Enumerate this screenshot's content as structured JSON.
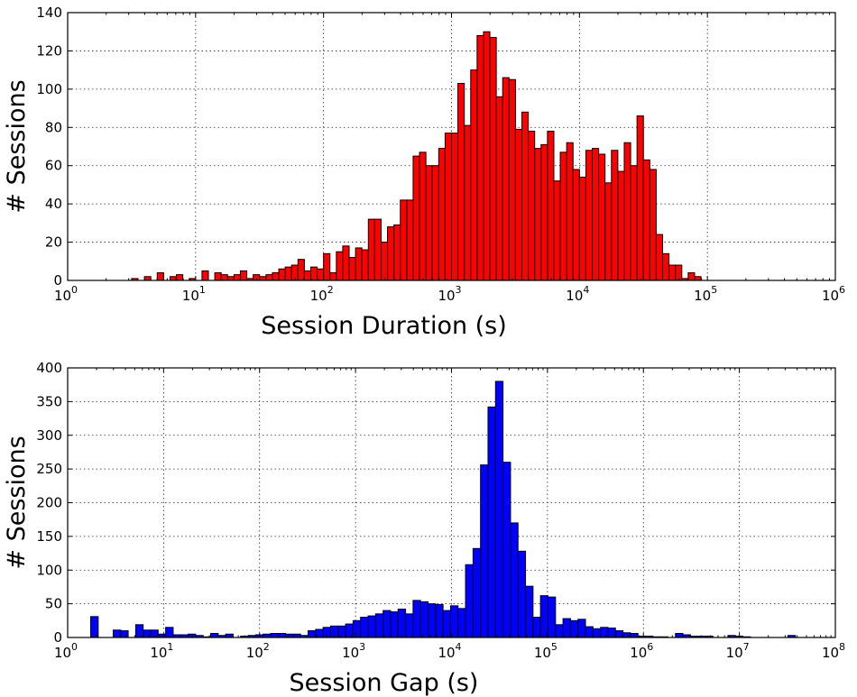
{
  "chart_data": [
    {
      "type": "bar",
      "xscale": "log",
      "xlim": [
        1,
        1000000
      ],
      "ylim": [
        0,
        140
      ],
      "xlabel": "Session Duration (s)",
      "ylabel": "# Sessions",
      "grid": true,
      "color": "#ff0000",
      "xticks": [
        {
          "base": "10",
          "exp": "0",
          "value": 1
        },
        {
          "base": "10",
          "exp": "1",
          "value": 10
        },
        {
          "base": "10",
          "exp": "2",
          "value": 100
        },
        {
          "base": "10",
          "exp": "3",
          "value": 1000
        },
        {
          "base": "10",
          "exp": "4",
          "value": 10000
        },
        {
          "base": "10",
          "exp": "5",
          "value": 100000
        },
        {
          "base": "10",
          "exp": "6",
          "value": 1000000
        }
      ],
      "yticks": [
        "0",
        "20",
        "40",
        "60",
        "80",
        "100",
        "120",
        "140"
      ],
      "bins_per_decade": 20,
      "bin_start_log10": 0.5,
      "values": [
        1,
        0,
        2,
        0,
        4,
        0,
        2,
        3,
        0,
        1,
        0,
        5,
        0,
        4,
        3,
        2,
        3,
        5,
        1,
        3,
        2,
        3,
        4,
        6,
        7,
        8,
        11,
        5,
        7,
        6,
        14,
        4,
        15,
        18,
        12,
        17,
        16,
        32,
        32,
        20,
        28,
        29,
        42,
        42,
        65,
        67,
        60,
        60,
        69,
        77,
        77,
        103,
        81,
        110,
        128,
        130,
        127,
        96,
        106,
        105,
        79,
        88,
        78,
        69,
        71,
        78,
        52,
        67,
        72,
        58,
        54,
        68,
        69,
        66,
        51,
        68,
        57,
        72,
        60,
        86,
        63,
        58,
        24,
        14,
        8,
        8,
        1,
        4,
        2
      ]
    },
    {
      "type": "bar",
      "xscale": "log",
      "xlim": [
        1,
        100000000
      ],
      "ylim": [
        0,
        400
      ],
      "xlabel": "Session Gap (s)",
      "ylabel": "# Sessions",
      "grid": true,
      "color": "#0000ff",
      "xticks": [
        {
          "base": "10",
          "exp": "0",
          "value": 1
        },
        {
          "base": "10",
          "exp": "1",
          "value": 10
        },
        {
          "base": "10",
          "exp": "2",
          "value": 100
        },
        {
          "base": "10",
          "exp": "3",
          "value": 1000
        },
        {
          "base": "10",
          "exp": "4",
          "value": 10000
        },
        {
          "base": "10",
          "exp": "5",
          "value": 100000
        },
        {
          "base": "10",
          "exp": "6",
          "value": 1000000
        },
        {
          "base": "10",
          "exp": "7",
          "value": 10000000
        },
        {
          "base": "10",
          "exp": "8",
          "value": 100000000
        }
      ],
      "yticks": [
        "0",
        "50",
        "100",
        "150",
        "200",
        "250",
        "300",
        "350",
        "400"
      ],
      "bins_per_decade": 12.8,
      "bin_start_log10": 0.24,
      "values": [
        31,
        0,
        0,
        11,
        10,
        0,
        19,
        11,
        11,
        5,
        15,
        4,
        4,
        5,
        3,
        1,
        6,
        3,
        5,
        0,
        2,
        3,
        4,
        5,
        6,
        6,
        5,
        5,
        3,
        10,
        12,
        15,
        17,
        17,
        20,
        25,
        30,
        32,
        35,
        40,
        38,
        42,
        35,
        55,
        53,
        50,
        49,
        40,
        47,
        43,
        108,
        132,
        256,
        342,
        380,
        260,
        170,
        128,
        76,
        30,
        62,
        60,
        19,
        28,
        25,
        27,
        16,
        13,
        15,
        14,
        10,
        7,
        6,
        2,
        2,
        1,
        1,
        0,
        6,
        4,
        2,
        2,
        2,
        0,
        0,
        3,
        2,
        1,
        0,
        0,
        0,
        0,
        0,
        3,
        0
      ]
    }
  ]
}
